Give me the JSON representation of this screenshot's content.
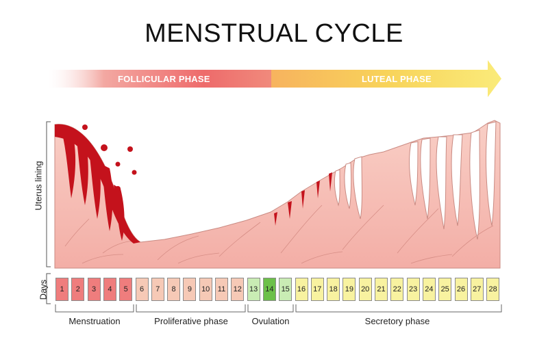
{
  "title": "MENSTRUAL CYCLE",
  "phases": {
    "follicular": "FOLLICULAR PHASE",
    "luteal": "LUTEAL PHASE"
  },
  "axis": {
    "y_label": "Uterus lining",
    "days_label": "Days"
  },
  "days": [
    "1",
    "2",
    "3",
    "4",
    "5",
    "6",
    "7",
    "8",
    "9",
    "10",
    "11",
    "12",
    "13",
    "14",
    "15",
    "16",
    "17",
    "18",
    "19",
    "20",
    "21",
    "22",
    "23",
    "24",
    "25",
    "26",
    "27",
    "28"
  ],
  "day_stage": [
    "menstruation",
    "menstruation",
    "menstruation",
    "menstruation",
    "menstruation",
    "proliferative",
    "proliferative",
    "proliferative",
    "proliferative",
    "proliferative",
    "proliferative",
    "proliferative",
    "ovulation",
    "ovulation",
    "ovulation",
    "secretory",
    "secretory",
    "secretory",
    "secretory",
    "secretory",
    "secretory",
    "secretory",
    "secretory",
    "secretory",
    "secretory",
    "secretory",
    "secretory",
    "secretory"
  ],
  "stages": {
    "menstruation": "Menstruation",
    "proliferative": "Proliferative phase",
    "ovulation": "Ovulation",
    "secretory": "Secretory phase"
  },
  "colors": {
    "menstruation": "#ef7d7d",
    "proliferative": "#f6c9b6",
    "ovulation": "#c9ecb4",
    "ovulation_peak": "#6cc04a",
    "secretory": "#f8f2a0",
    "lining": "#f6b9b1",
    "lining_stroke": "#c98a82",
    "blood": "#c4121c",
    "follicular_arrow": "#ee6b6b",
    "luteal_arrow": "#f8dc58"
  }
}
